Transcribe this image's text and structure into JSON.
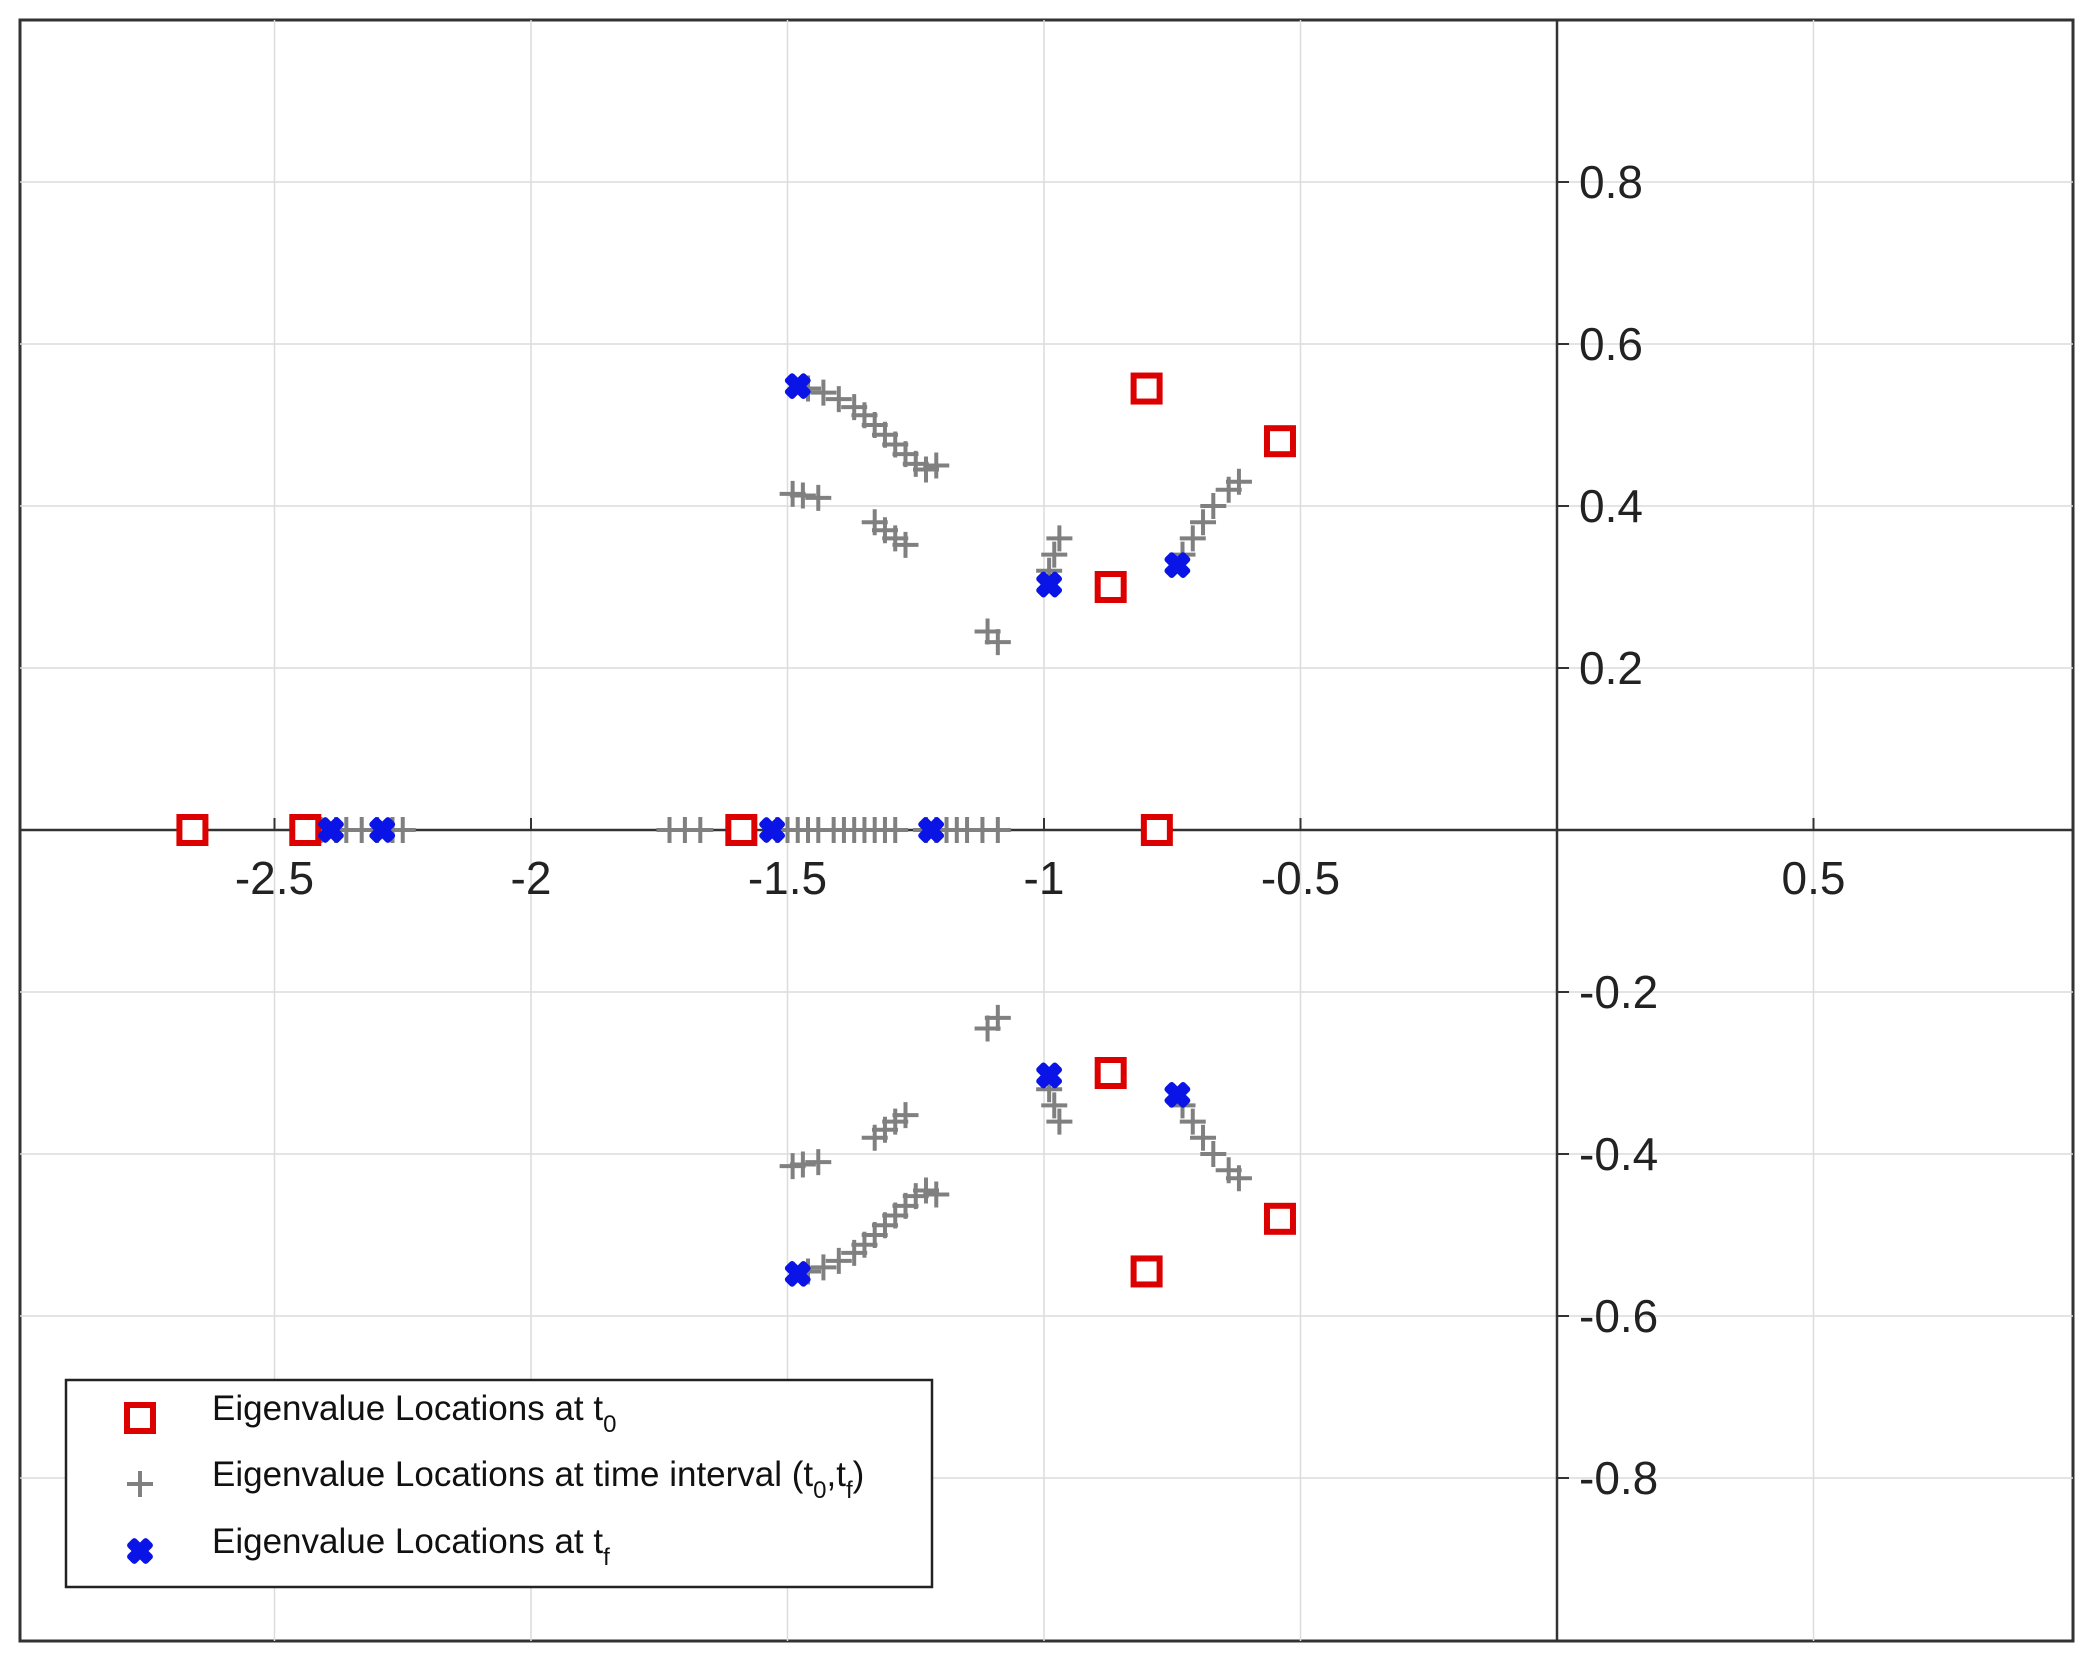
{
  "chart_data": {
    "type": "scatter",
    "title": "",
    "xlabel": "",
    "ylabel": "",
    "xlim": [
      -3.0,
      1.0
    ],
    "ylim": [
      -1.0,
      1.0
    ],
    "grid": true,
    "legend_position": "bottom-left",
    "x_ticks": [
      -2.5,
      -2,
      -1.5,
      -1,
      -0.5,
      0.5
    ],
    "x_tick_labels": [
      "-2.5",
      "-2",
      "-1.5",
      "-1",
      "-0.5",
      "0.5"
    ],
    "y_ticks": [
      0.8,
      0.6,
      0.4,
      0.2,
      -0.2,
      -0.4,
      -0.6,
      -0.8
    ],
    "y_tick_labels": [
      "0.8",
      "0.6",
      "0.4",
      "0.2",
      "-0.2",
      "-0.4",
      "-0.6",
      "-0.8"
    ],
    "grid_x": [
      -2.5,
      -2,
      -1.5,
      -1,
      -0.5,
      0.5
    ],
    "grid_y": [
      0.8,
      0.6,
      0.4,
      0.2,
      -0.2,
      -0.4,
      -0.6,
      -0.8
    ],
    "colors": {
      "initial": "#dd0000",
      "interval": "#808080",
      "final": "#0a14e6",
      "axis": "#333333",
      "grid": "#dcdcdc"
    },
    "series": [
      {
        "name": "Eigenvalue Locations at t0",
        "marker": "square",
        "points": [
          [
            -2.66,
            0
          ],
          [
            -2.44,
            0
          ],
          [
            -1.59,
            0
          ],
          [
            -0.78,
            0
          ],
          [
            -0.8,
            0.545
          ],
          [
            -0.8,
            -0.545
          ],
          [
            -0.54,
            0.48
          ],
          [
            -0.54,
            -0.48
          ],
          [
            -0.87,
            0.3
          ],
          [
            -0.87,
            -0.3
          ]
        ]
      },
      {
        "name": "Eigenvalue Locations at time interval (t0,tf)",
        "marker": "plus",
        "points": [
          [
            -2.43,
            0
          ],
          [
            -2.41,
            0
          ],
          [
            -2.38,
            0
          ],
          [
            -2.36,
            0
          ],
          [
            -2.33,
            0
          ],
          [
            -2.3,
            0
          ],
          [
            -2.27,
            0
          ],
          [
            -2.25,
            0
          ],
          [
            -1.73,
            0
          ],
          [
            -1.7,
            0
          ],
          [
            -1.67,
            0
          ],
          [
            -1.52,
            0
          ],
          [
            -1.5,
            0
          ],
          [
            -1.48,
            0
          ],
          [
            -1.46,
            0
          ],
          [
            -1.44,
            0
          ],
          [
            -1.41,
            0
          ],
          [
            -1.39,
            0
          ],
          [
            -1.37,
            0
          ],
          [
            -1.35,
            0
          ],
          [
            -1.33,
            0
          ],
          [
            -1.31,
            0
          ],
          [
            -1.29,
            0
          ],
          [
            -1.23,
            0
          ],
          [
            -1.21,
            0
          ],
          [
            -1.19,
            0
          ],
          [
            -1.17,
            0
          ],
          [
            -1.15,
            0
          ],
          [
            -1.12,
            0
          ],
          [
            -1.09,
            0
          ],
          [
            -1.46,
            0.545
          ],
          [
            -1.43,
            0.54
          ],
          [
            -1.4,
            0.532
          ],
          [
            -1.37,
            0.522
          ],
          [
            -1.35,
            0.512
          ],
          [
            -1.33,
            0.5
          ],
          [
            -1.31,
            0.488
          ],
          [
            -1.29,
            0.476
          ],
          [
            -1.27,
            0.464
          ],
          [
            -1.25,
            0.452
          ],
          [
            -1.23,
            0.445
          ],
          [
            -1.21,
            0.45
          ],
          [
            -1.46,
            -0.545
          ],
          [
            -1.43,
            -0.54
          ],
          [
            -1.4,
            -0.532
          ],
          [
            -1.37,
            -0.522
          ],
          [
            -1.35,
            -0.512
          ],
          [
            -1.33,
            -0.5
          ],
          [
            -1.31,
            -0.488
          ],
          [
            -1.29,
            -0.476
          ],
          [
            -1.27,
            -0.464
          ],
          [
            -1.25,
            -0.452
          ],
          [
            -1.23,
            -0.445
          ],
          [
            -1.21,
            -0.45
          ],
          [
            -1.49,
            0.415
          ],
          [
            -1.47,
            0.413
          ],
          [
            -1.44,
            0.41
          ],
          [
            -1.49,
            -0.415
          ],
          [
            -1.47,
            -0.413
          ],
          [
            -1.44,
            -0.41
          ],
          [
            -1.33,
            0.38
          ],
          [
            -1.31,
            0.37
          ],
          [
            -1.29,
            0.36
          ],
          [
            -1.27,
            0.352
          ],
          [
            -1.33,
            -0.38
          ],
          [
            -1.31,
            -0.37
          ],
          [
            -1.29,
            -0.36
          ],
          [
            -1.27,
            -0.352
          ],
          [
            -1.11,
            0.245
          ],
          [
            -1.09,
            0.232
          ],
          [
            -1.11,
            -0.245
          ],
          [
            -1.09,
            -0.232
          ],
          [
            -0.99,
            0.32
          ],
          [
            -0.98,
            0.34
          ],
          [
            -0.97,
            0.36
          ],
          [
            -0.99,
            -0.32
          ],
          [
            -0.98,
            -0.34
          ],
          [
            -0.97,
            -0.36
          ],
          [
            -0.73,
            0.34
          ],
          [
            -0.71,
            0.36
          ],
          [
            -0.69,
            0.38
          ],
          [
            -0.67,
            0.4
          ],
          [
            -0.64,
            0.42
          ],
          [
            -0.62,
            0.43
          ],
          [
            -0.73,
            -0.34
          ],
          [
            -0.71,
            -0.36
          ],
          [
            -0.69,
            -0.38
          ],
          [
            -0.67,
            -0.4
          ],
          [
            -0.64,
            -0.42
          ],
          [
            -0.62,
            -0.43
          ]
        ]
      },
      {
        "name": "Eigenvalue Locations at tf",
        "marker": "cross-filled",
        "points": [
          [
            -2.39,
            0
          ],
          [
            -2.29,
            0
          ],
          [
            -1.53,
            0
          ],
          [
            -1.22,
            0
          ],
          [
            -1.48,
            0.548
          ],
          [
            -1.48,
            -0.548
          ],
          [
            -0.99,
            0.303
          ],
          [
            -0.99,
            -0.303
          ],
          [
            -0.74,
            0.327
          ],
          [
            -0.74,
            -0.327
          ]
        ]
      }
    ],
    "legend": [
      {
        "prefix": "Eigenvalue Locations at t",
        "sub0": "0",
        "mid": "",
        "sub1": "",
        "suffix": ""
      },
      {
        "prefix": "Eigenvalue Locations at time interval (t",
        "sub0": "0",
        "mid": ",t",
        "sub1": "f",
        "suffix": ")"
      },
      {
        "prefix": "Eigenvalue Locations at t",
        "sub0": "f",
        "mid": "",
        "sub1": "",
        "suffix": ""
      }
    ]
  }
}
